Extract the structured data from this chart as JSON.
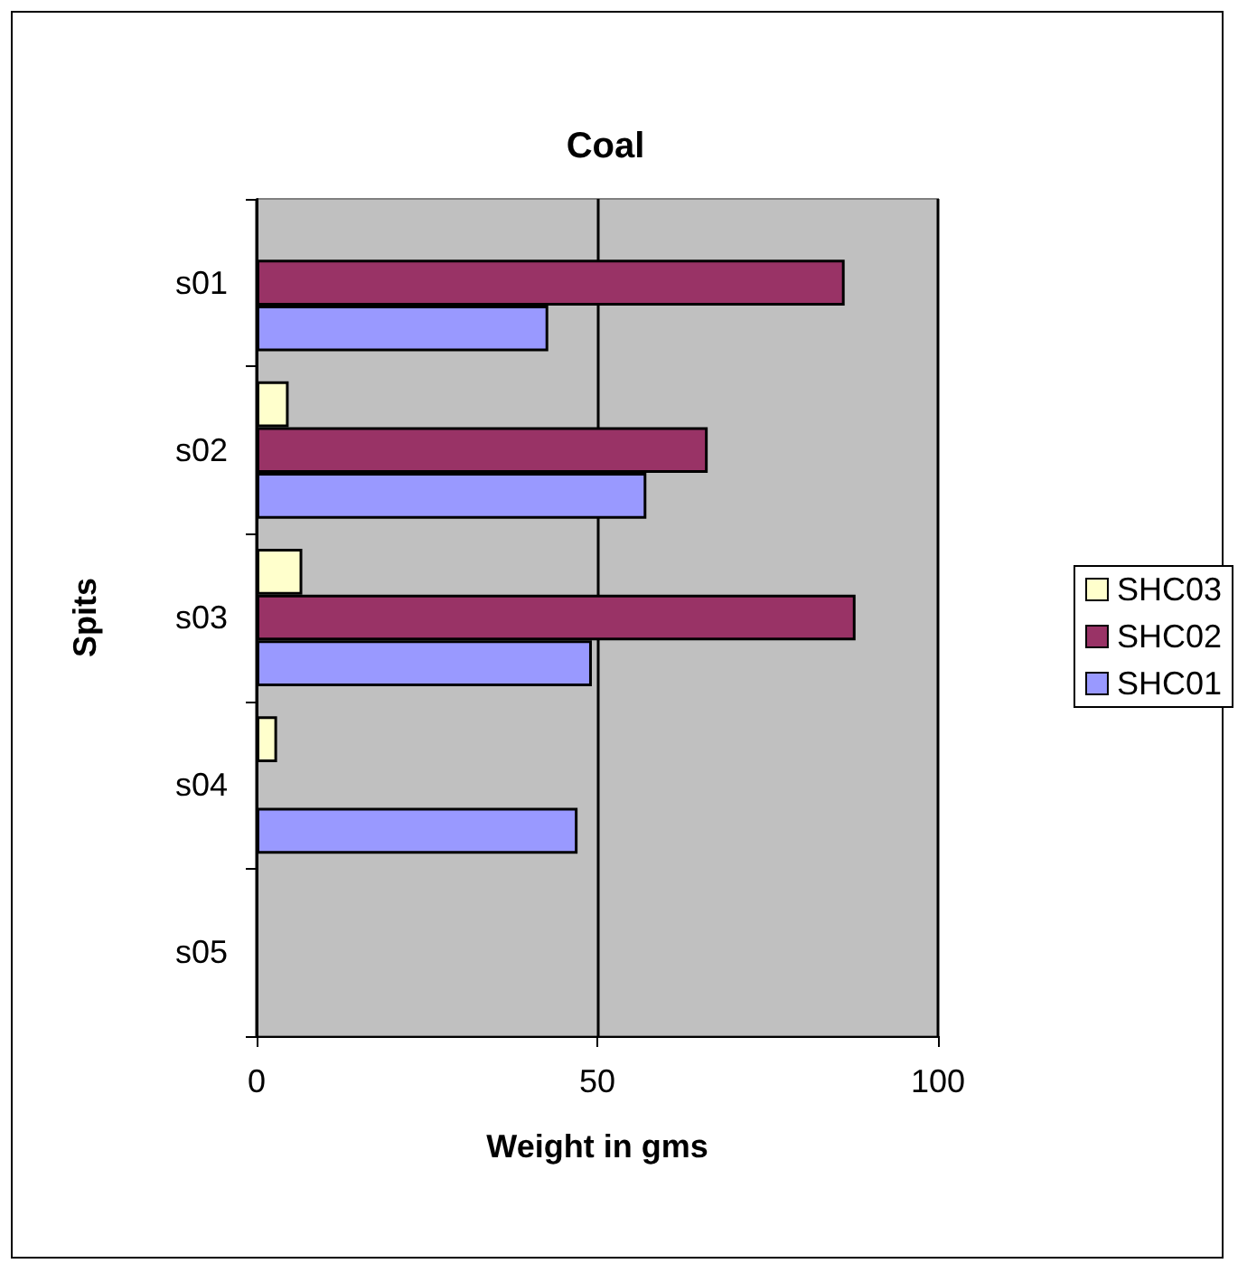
{
  "chart_data": {
    "type": "bar",
    "orientation": "horizontal",
    "title": "Coal",
    "xlabel": "Weight in gms",
    "ylabel": "Spits",
    "categories": [
      "s01",
      "s02",
      "s03",
      "s04",
      "s05"
    ],
    "series": [
      {
        "name": "SHC03",
        "color": "#ffffcc",
        "values": [
          null,
          4.7,
          6.7,
          3.0,
          null
        ]
      },
      {
        "name": "SHC02",
        "color": "#993366",
        "values": [
          86.3,
          66.2,
          87.9,
          null,
          null
        ]
      },
      {
        "name": "SHC01",
        "color": "#9999ff",
        "values": [
          42.8,
          57.2,
          49.2,
          47.1,
          null
        ]
      }
    ],
    "xlim": [
      0,
      100
    ],
    "xticks": [
      0,
      50,
      100
    ],
    "grid": "x",
    "legend": "right"
  }
}
